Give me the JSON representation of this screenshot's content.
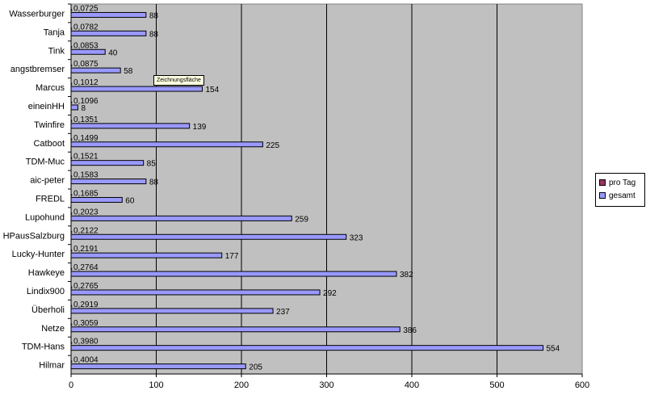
{
  "chart_data": {
    "type": "bar",
    "orientation": "horizontal",
    "categories": [
      "Wasserburger",
      "Tanja",
      "Tink",
      "angstbremser",
      "Marcus",
      "eineinHH",
      "Twinfire",
      "Catboot",
      "TDM-Muc",
      "aic-peter",
      "FREDL",
      "Lupohund",
      "HPausSalzburg",
      "Lucky-Hunter",
      "Hawkeye",
      "Lindix900",
      "Überholi",
      "Netze",
      "TDM-Hans",
      "Hilmar"
    ],
    "series": [
      {
        "name": "pro Tag",
        "color": "#993366",
        "labels": [
          "0,0725",
          "0,0782",
          "0,0853",
          "0,0875",
          "0,1012",
          "0,1096",
          "0,1351",
          "0,1499",
          "0,1521",
          "0,1583",
          "0,1685",
          "0,2023",
          "0,2122",
          "0,2191",
          "0,2764",
          "0,2765",
          "0,2919",
          "0,3059",
          "0,3980",
          "0,4004"
        ],
        "values": [
          0.0725,
          0.0782,
          0.0853,
          0.0875,
          0.1012,
          0.1096,
          0.1351,
          0.1499,
          0.1521,
          0.1583,
          0.1685,
          0.2023,
          0.2122,
          0.2191,
          0.2764,
          0.2765,
          0.2919,
          0.3059,
          0.398,
          0.4004
        ]
      },
      {
        "name": "gesamt",
        "color": "#9999ff",
        "values": [
          88,
          88,
          40,
          58,
          154,
          8,
          139,
          225,
          85,
          88,
          60,
          259,
          323,
          177,
          382,
          292,
          237,
          386,
          554,
          205
        ]
      }
    ],
    "x_ticks": [
      "0",
      "100",
      "200",
      "300",
      "400",
      "500",
      "600"
    ],
    "xlim": [
      0,
      600
    ],
    "grid": true,
    "plot_background": "#c0c0c0",
    "legend_position": "right"
  },
  "tooltip": "Zeichnungsfläche"
}
